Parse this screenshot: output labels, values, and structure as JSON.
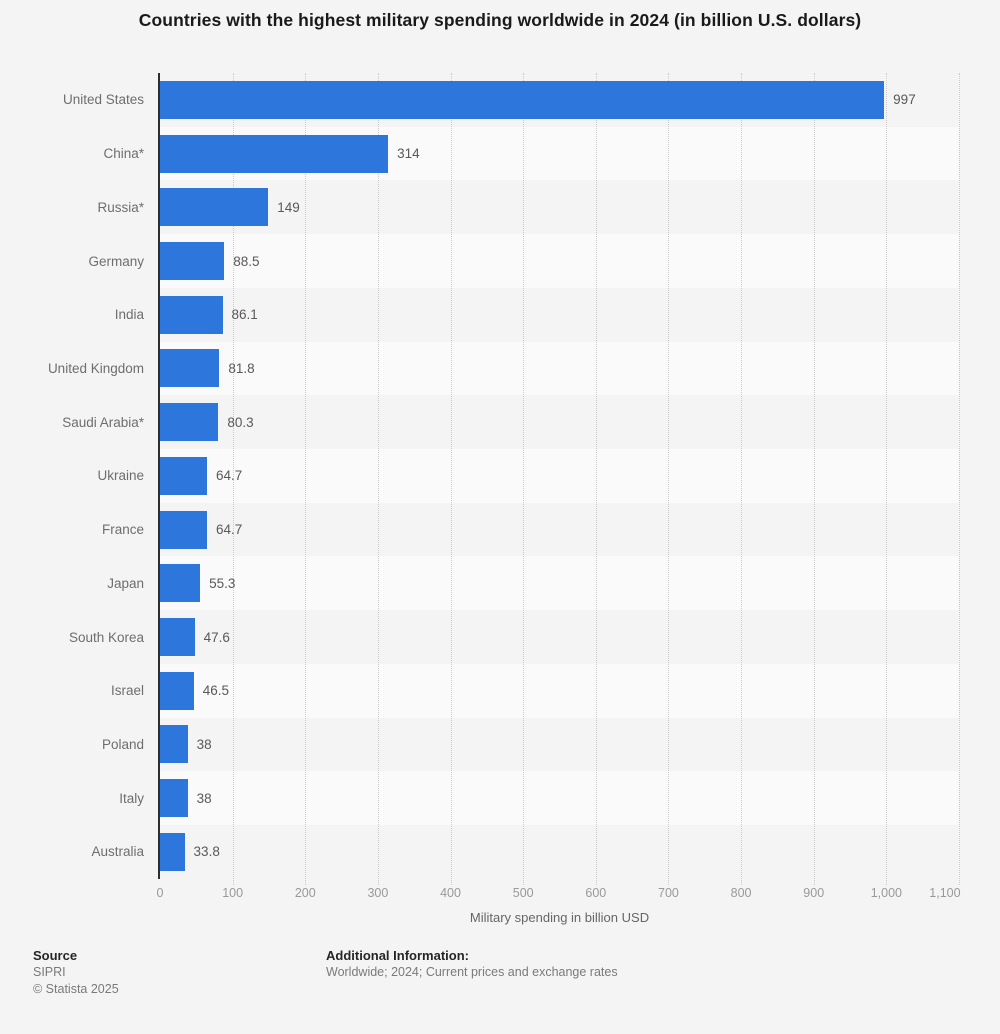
{
  "title": "Countries with the highest military spending worldwide in 2024 (in billion U.S. dollars)",
  "chart_data": {
    "type": "bar",
    "orientation": "horizontal",
    "categories": [
      "United States",
      "China*",
      "Russia*",
      "Germany",
      "India",
      "United Kingdom",
      "Saudi Arabia*",
      "Ukraine",
      "France",
      "Japan",
      "South Korea",
      "Israel",
      "Poland",
      "Italy",
      "Australia"
    ],
    "values": [
      997,
      314,
      149,
      88.5,
      86.1,
      81.8,
      80.3,
      64.7,
      64.7,
      55.3,
      47.6,
      46.5,
      38,
      38,
      33.8
    ],
    "value_labels": [
      "997",
      "314",
      "149",
      "88.5",
      "86.1",
      "81.8",
      "80.3",
      "64.7",
      "64.7",
      "55.3",
      "47.6",
      "46.5",
      "38",
      "38",
      "33.8"
    ],
    "xlabel": "Military spending in billion USD",
    "ylabel": "",
    "xlim": [
      0,
      1100
    ],
    "xticks": [
      0,
      100,
      200,
      300,
      400,
      500,
      600,
      700,
      800,
      900,
      1000,
      1100
    ],
    "xtick_labels": [
      "0",
      "100",
      "200",
      "300",
      "400",
      "500",
      "600",
      "700",
      "800",
      "900",
      "1,000",
      "1,100"
    ],
    "grid": "vertical-dotted",
    "legend": "none"
  },
  "footer": {
    "source_label": "Source",
    "source_value": "SIPRI",
    "copyright": "© Statista 2025",
    "additional_label": "Additional Information:",
    "additional_value": "Worldwide; 2024; Current prices and exchange rates"
  },
  "colors": {
    "bar": "#2d76dc",
    "background": "#f4f4f4",
    "band_light": "#fafafa",
    "gridline": "#c9c9c9",
    "axis_line": "#2e2e2e",
    "title_text": "#1a1a1a",
    "category_text": "#6e6e6e",
    "value_text": "#595959",
    "tick_text": "#999999",
    "axis_label_text": "#666666"
  }
}
